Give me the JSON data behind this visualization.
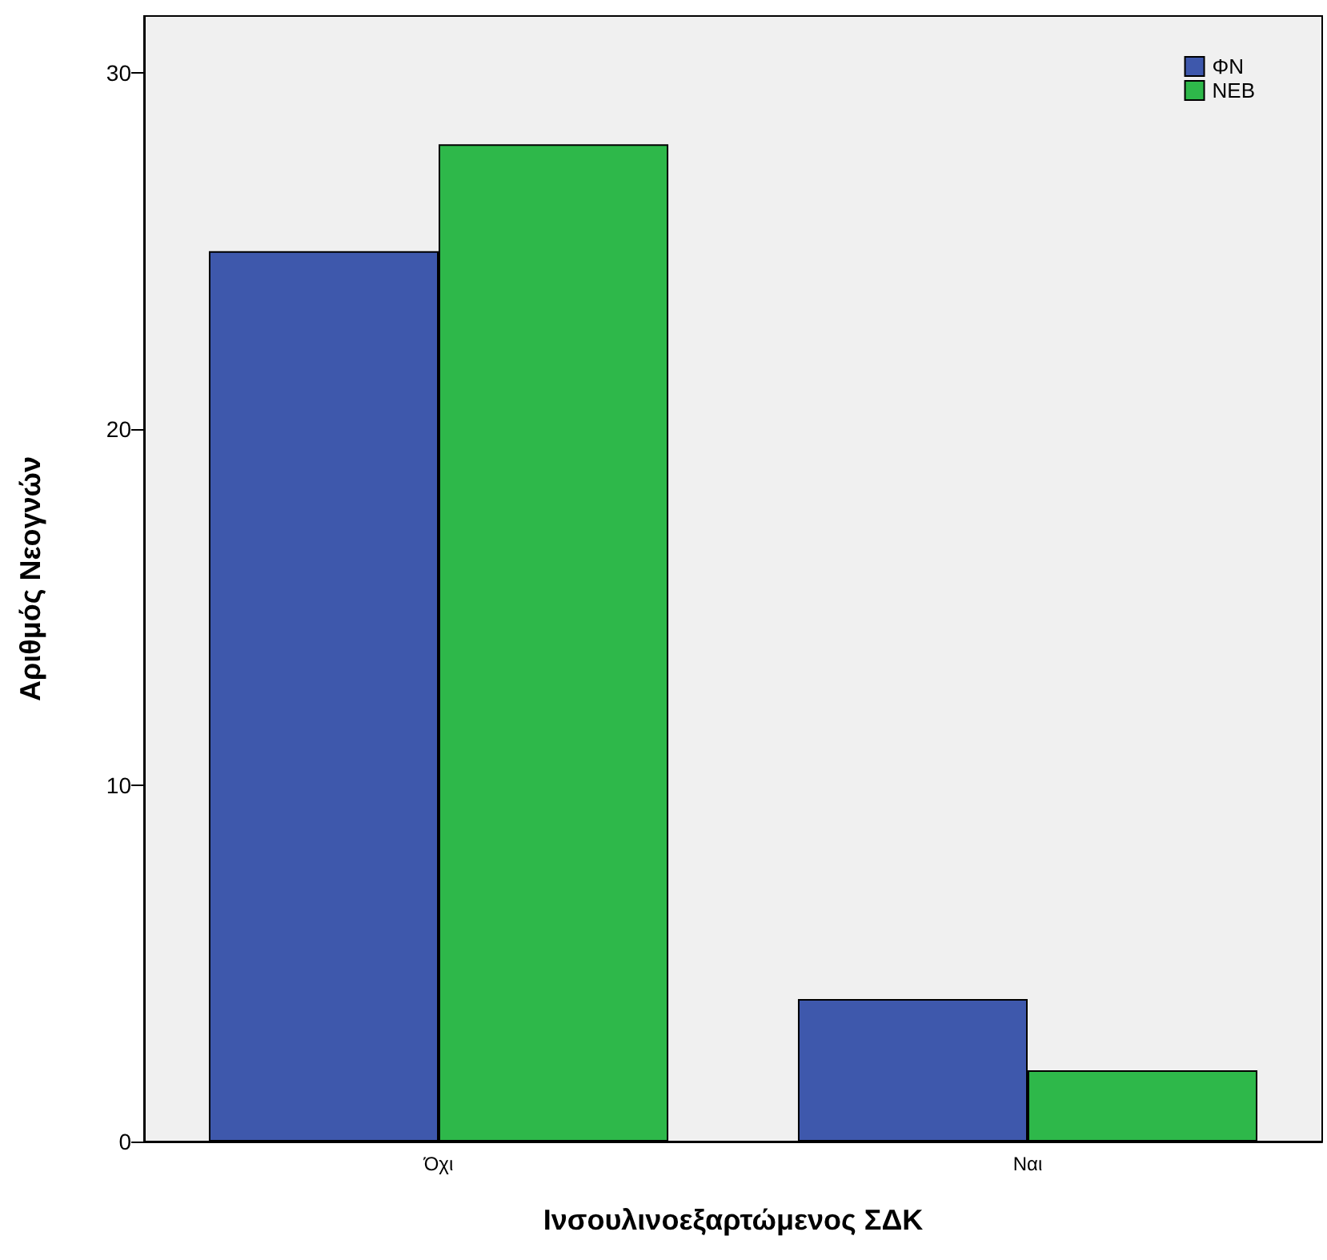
{
  "chart_data": {
    "type": "bar",
    "xlabel": "Ινσουλινοεξαρτώμενος ΣΔΚ",
    "ylabel": "Αριθμός Νεογνών",
    "categories": [
      "Όχι",
      "Ναι"
    ],
    "series": [
      {
        "name": "ΦΝ",
        "color": "#3e58ac",
        "values": [
          25,
          4
        ]
      },
      {
        "name": "NEB",
        "color": "#2eb84a",
        "values": [
          28,
          2
        ]
      }
    ],
    "ylim": [
      0,
      31.6
    ],
    "yticks": [
      0,
      10,
      20,
      30
    ],
    "grid": false,
    "legend": "top right"
  }
}
